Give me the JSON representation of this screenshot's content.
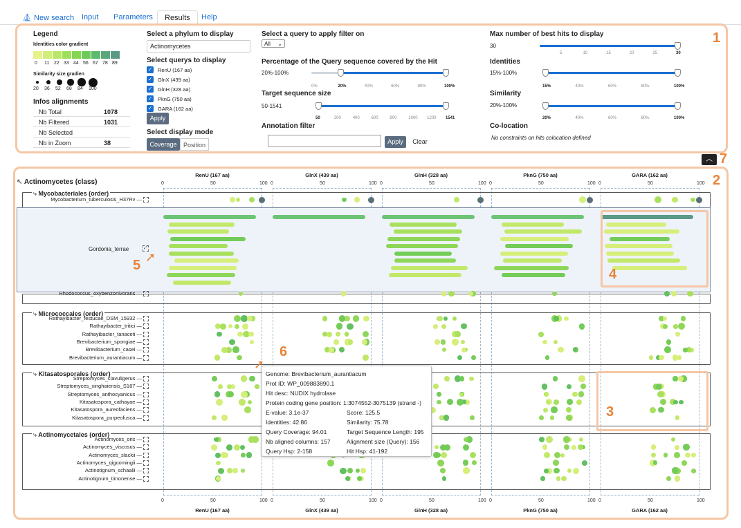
{
  "tabs": [
    "New search",
    "Input",
    "Parameters",
    "Results",
    "Help"
  ],
  "legend": {
    "title": "Legend",
    "identities_title": "Identities color gradient",
    "identities_values": [
      "0",
      "11",
      "22",
      "33",
      "44",
      "56",
      "67",
      "78",
      "89"
    ],
    "identities_colors": [
      "#e6f28a",
      "#d2ee78",
      "#b8e865",
      "#9ee05a",
      "#84d653",
      "#6cc95a",
      "#5fb96a",
      "#5aa87a",
      "#5a9a86"
    ],
    "similarity_title": "Similarity size gradien",
    "similarity_values": [
      "20",
      "36",
      "52",
      "68",
      "84",
      "100"
    ]
  },
  "infos": {
    "title": "Infos alignments",
    "rows": [
      {
        "label": "Nb Total",
        "value": "1078"
      },
      {
        "label": "Nb Filtered",
        "value": "1031"
      },
      {
        "label": "Nb Selected",
        "value": ""
      },
      {
        "label": "Nb in Zoom",
        "value": "38"
      }
    ]
  },
  "phylum": {
    "label": "Select a phylum to display",
    "value": "Actinomycetes"
  },
  "queries": {
    "label": "Select querys to display",
    "items": [
      "RenU (167 aa)",
      "GlnX (439 aa)",
      "GlnH (328 aa)",
      "PknG (750 aa)",
      "GARA (162 aa)"
    ],
    "apply": "Apply"
  },
  "display_mode": {
    "label": "Select display mode",
    "options": [
      "Coverage",
      "Position"
    ]
  },
  "filter_query": {
    "label": "Select a query to apply filter on",
    "value": "All"
  },
  "coverage_filter": {
    "label": "Percentage of the Query sequence covered by the Hit",
    "range": "20%-100%",
    "ticks": [
      "0%",
      "20%",
      "40%",
      "60%",
      "80%",
      "100%"
    ]
  },
  "target_size": {
    "label": "Target sequence size",
    "range": "50-1541",
    "ticks": [
      "50",
      "200",
      "400",
      "600",
      "800",
      "1000",
      "1200",
      "1541"
    ]
  },
  "annotation": {
    "label": "Annotation filter",
    "apply": "Apply",
    "clear": "Clear"
  },
  "max_hits": {
    "label": "Max number of best hits to display",
    "value": "30",
    "ticks": [
      "5",
      "10",
      "15",
      "20",
      "25",
      "30"
    ]
  },
  "identities": {
    "label": "Identities",
    "range": "15%-100%",
    "ticks": [
      "15%",
      "40%",
      "60%",
      "80%",
      "100%"
    ]
  },
  "similarity": {
    "label": "Similarity",
    "range": "20%-100%",
    "ticks": [
      "20%",
      "40%",
      "60%",
      "80%",
      "100%"
    ]
  },
  "colocation": {
    "label": "Co-location",
    "text": "No constraints on hits colocation defined"
  },
  "annotations_numbers": [
    "1",
    "2",
    "3",
    "4",
    "5",
    "6",
    "7"
  ],
  "root": "Actinomycetes (class)",
  "query_columns": [
    "RenU (167 aa)",
    "GlnX (439 aa)",
    "GlnH (328 aa)",
    "PknG (750 aa)",
    "GARA (162 aa)"
  ],
  "axis_ticks": [
    "0",
    "50",
    "100"
  ],
  "groups": [
    {
      "name": "Mycobacteriales (order)",
      "species": [
        "Mycobacterium_tuberculosis_H37Rv"
      ]
    },
    {
      "name": "",
      "species": [
        "Gordonia_terrae",
        "Rhodococcus_oxybenzonivorans"
      ]
    },
    {
      "name": "Micrococcales (order)",
      "species": [
        "Rathayibacter_festucae_DSM_15932",
        "Rathayibacter_tritici",
        "Rathayibacter_tanaceti",
        "Brevibacterium_spongiae",
        "Brevibacterium_casei",
        "Brevibacterium_aurantiacum"
      ]
    },
    {
      "name": "Kitasatosporales (order)",
      "species": [
        "Streptomyces_clavuligerus",
        "Streptomyces_xinghaiensis_S187",
        "Streptomyces_anthocyanicus",
        "Kitasatospora_cathayae",
        "Kitasatospora_aureofaciens",
        "Kitasatospora_purpeofusca"
      ]
    },
    {
      "name": "Actinomycetales (order)",
      "species": [
        "Actinomyces_oris",
        "Actinomyces_viscosus",
        "Actinomyces_slackii",
        "Actinomyces_qiguomingii",
        "Actinotignum_schaalii",
        "Actinotignum_timonense"
      ]
    }
  ],
  "tooltip": {
    "genome": "Genome: Brevibacterium_aurantiacum",
    "prot": "Prot ID: WP_009883890.1",
    "desc": "Hit desc: NUDIX hydrolase",
    "pos": "Protein coding gene position: 1:3074552-3075139 (strand -)",
    "evalue": "E-value: 3.1e-37",
    "score": "Score: 125.5",
    "identities": "Identities: 42.86",
    "similarity": "Similarity: 75.78",
    "qcov": "Query Coverage: 94.01",
    "tlen": "Target Sequence Length: 195",
    "nbcol": "Nb aligned columns: 157",
    "alsize": "Alignment size (Query): 156",
    "qhsp": "Query Hsp: 2-158",
    "hhsp": "Hit Hsp: 41-192"
  }
}
